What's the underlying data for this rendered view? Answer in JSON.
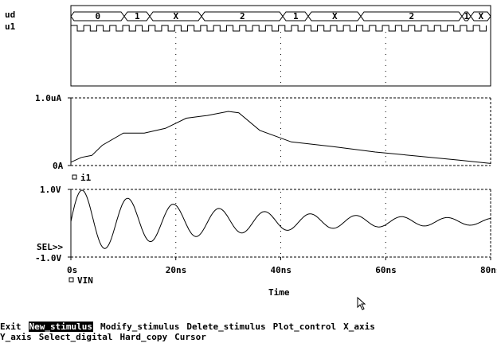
{
  "digital": {
    "signals": [
      "ud",
      "u1"
    ],
    "bus_values": [
      "0",
      "1",
      "X",
      "2",
      "1",
      "X",
      "2",
      "1",
      "X"
    ]
  },
  "analog_current": {
    "y_top_label": "1.0uA",
    "y_bottom_label": "0A",
    "legend": "i1",
    "chart_data": {
      "type": "line",
      "x": [
        0,
        2,
        4,
        6,
        10,
        14,
        18,
        22,
        26,
        30,
        32,
        36,
        42,
        50,
        58,
        66,
        74,
        80,
        83
      ],
      "y": [
        0.05,
        0.12,
        0.15,
        0.3,
        0.48,
        0.48,
        0.55,
        0.7,
        0.74,
        0.8,
        0.78,
        0.52,
        0.35,
        0.28,
        0.2,
        0.14,
        0.08,
        0.03,
        0.03
      ],
      "ylim": [
        0,
        1.0
      ]
    }
  },
  "analog_voltage": {
    "y_top_label": "1.0V",
    "y_bottom_label": "-1.0V",
    "selected_marker": "SEL>>",
    "legend": "VIN",
    "chart_data": {
      "type": "line",
      "ylim": [
        -1.0,
        1.0
      ],
      "amplitude_start": 1.0,
      "decay_per_ns": 0.0167,
      "period_ns": 8.7,
      "offset": 0.05
    }
  },
  "x_axis": {
    "tick_labels": [
      "0s",
      "20ns",
      "40ns",
      "60ns",
      "80ns"
    ],
    "label": "Time",
    "xlim": [
      0,
      80
    ]
  },
  "menu": {
    "line1": [
      {
        "label": "Exit"
      },
      {
        "label": "New_stimulus",
        "selected": true
      },
      {
        "label": "Modify_stimulus"
      },
      {
        "label": "Delete_stimulus"
      },
      {
        "label": "Plot_control"
      },
      {
        "label": "X_axis"
      }
    ],
    "line2": [
      {
        "label": "Y_axis"
      },
      {
        "label": "Select_digital"
      },
      {
        "label": "Hard_copy"
      },
      {
        "label": "Cursor"
      }
    ]
  }
}
